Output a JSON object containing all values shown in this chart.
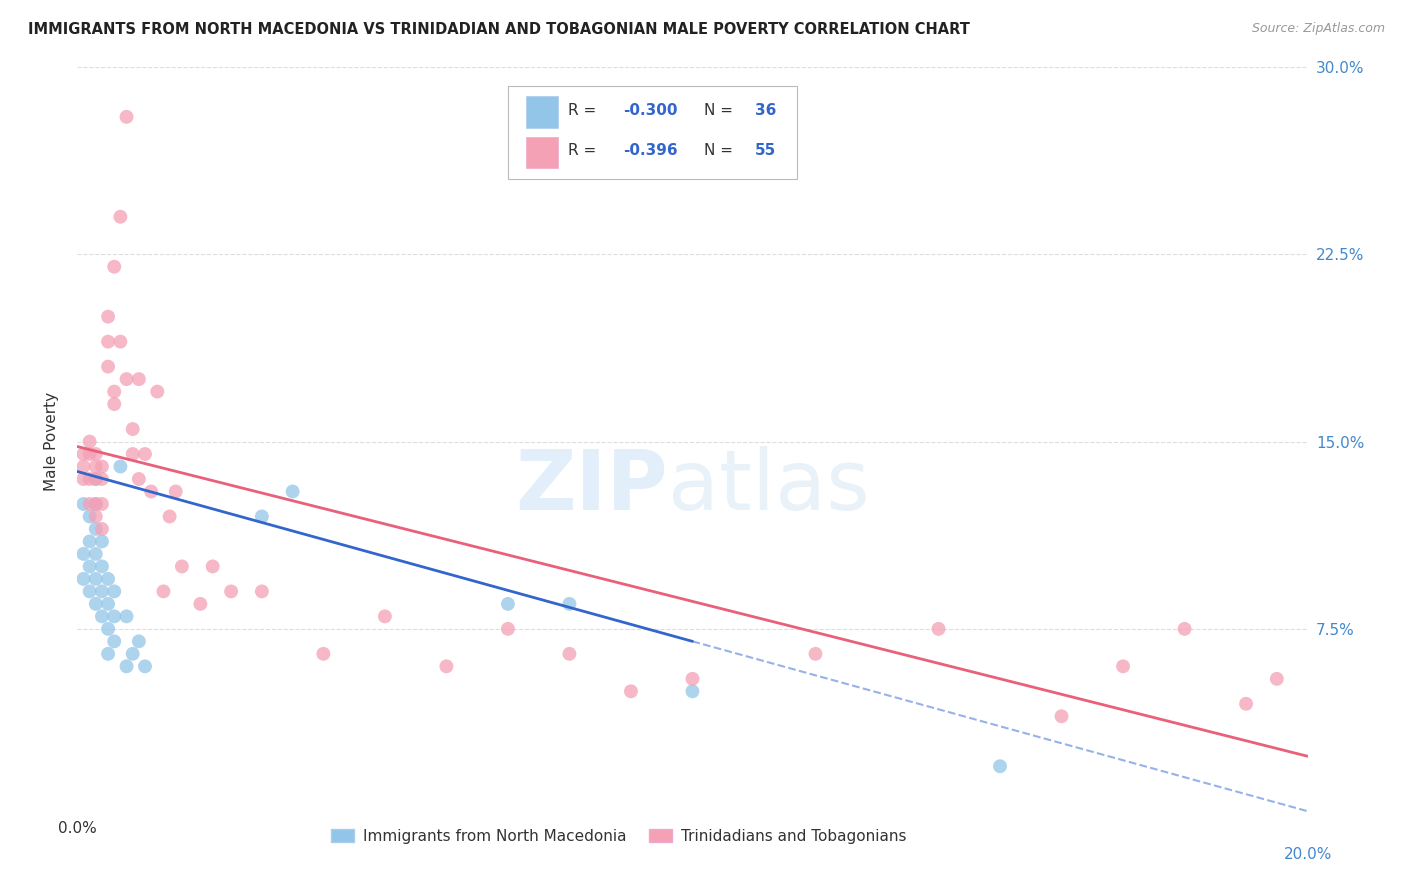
{
  "title": "IMMIGRANTS FROM NORTH MACEDONIA VS TRINIDADIAN AND TOBAGONIAN MALE POVERTY CORRELATION CHART",
  "source": "Source: ZipAtlas.com",
  "ylabel": "Male Poverty",
  "xlim": [
    0.0,
    0.2
  ],
  "ylim": [
    0.0,
    0.3
  ],
  "yticks": [
    0.075,
    0.15,
    0.225,
    0.3
  ],
  "ytick_labels": [
    "7.5%",
    "15.0%",
    "22.5%",
    "30.0%"
  ],
  "blue_label": "Immigrants from North Macedonia",
  "pink_label": "Trinidadians and Tobagonians",
  "blue_R": -0.3,
  "blue_N": 36,
  "pink_R": -0.396,
  "pink_N": 55,
  "blue_color": "#92C5E8",
  "pink_color": "#F4A0B5",
  "blue_line_color": "#3366CC",
  "pink_line_color": "#E8607A",
  "legend_text_color": "#3366CC",
  "background_color": "#FFFFFF",
  "blue_scatter_x": [
    0.001,
    0.001,
    0.001,
    0.002,
    0.002,
    0.002,
    0.002,
    0.003,
    0.003,
    0.003,
    0.003,
    0.003,
    0.003,
    0.004,
    0.004,
    0.004,
    0.004,
    0.005,
    0.005,
    0.005,
    0.005,
    0.006,
    0.006,
    0.006,
    0.007,
    0.008,
    0.008,
    0.009,
    0.01,
    0.011,
    0.03,
    0.035,
    0.07,
    0.08,
    0.1,
    0.15
  ],
  "blue_scatter_y": [
    0.125,
    0.105,
    0.095,
    0.12,
    0.11,
    0.1,
    0.09,
    0.135,
    0.125,
    0.115,
    0.105,
    0.095,
    0.085,
    0.11,
    0.1,
    0.09,
    0.08,
    0.095,
    0.085,
    0.075,
    0.065,
    0.09,
    0.08,
    0.07,
    0.14,
    0.08,
    0.06,
    0.065,
    0.07,
    0.06,
    0.12,
    0.13,
    0.085,
    0.085,
    0.05,
    0.02
  ],
  "pink_scatter_x": [
    0.001,
    0.001,
    0.001,
    0.002,
    0.002,
    0.002,
    0.002,
    0.003,
    0.003,
    0.003,
    0.003,
    0.003,
    0.004,
    0.004,
    0.004,
    0.004,
    0.005,
    0.005,
    0.005,
    0.006,
    0.006,
    0.006,
    0.007,
    0.007,
    0.008,
    0.008,
    0.009,
    0.009,
    0.01,
    0.01,
    0.011,
    0.012,
    0.013,
    0.014,
    0.015,
    0.016,
    0.017,
    0.02,
    0.022,
    0.025,
    0.03,
    0.04,
    0.05,
    0.06,
    0.07,
    0.08,
    0.09,
    0.1,
    0.12,
    0.14,
    0.16,
    0.17,
    0.18,
    0.19,
    0.195
  ],
  "pink_scatter_y": [
    0.145,
    0.14,
    0.135,
    0.15,
    0.145,
    0.135,
    0.125,
    0.145,
    0.14,
    0.135,
    0.125,
    0.12,
    0.14,
    0.135,
    0.125,
    0.115,
    0.2,
    0.19,
    0.18,
    0.22,
    0.17,
    0.165,
    0.24,
    0.19,
    0.28,
    0.175,
    0.155,
    0.145,
    0.175,
    0.135,
    0.145,
    0.13,
    0.17,
    0.09,
    0.12,
    0.13,
    0.1,
    0.085,
    0.1,
    0.09,
    0.09,
    0.065,
    0.08,
    0.06,
    0.075,
    0.065,
    0.05,
    0.055,
    0.065,
    0.075,
    0.04,
    0.06,
    0.075,
    0.045,
    0.055
  ],
  "blue_line_x0": 0.0,
  "blue_line_y0": 0.138,
  "blue_line_x1": 0.2,
  "blue_line_y1": 0.002,
  "blue_line_solid_end": 0.1,
  "pink_line_x0": 0.0,
  "pink_line_y0": 0.148,
  "pink_line_x1": 0.2,
  "pink_line_y1": 0.024,
  "grid_color": "#DDDDDD"
}
